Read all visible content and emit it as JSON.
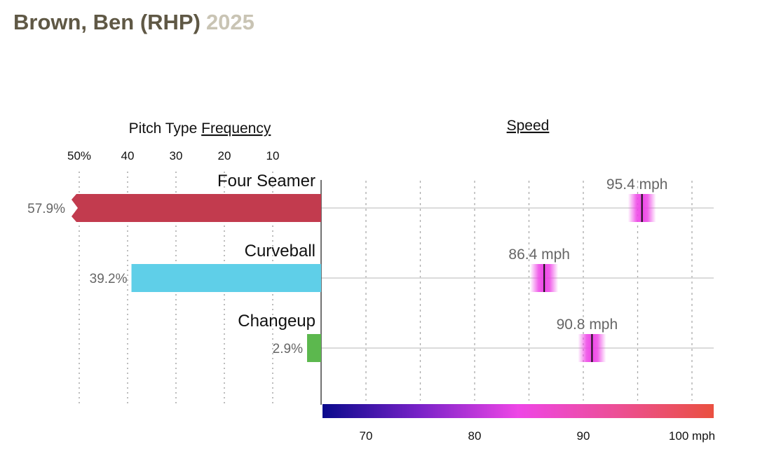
{
  "header": {
    "player": "Brown, Ben (RHP)",
    "season": "2025"
  },
  "chart_data": {
    "type": "bar",
    "frequency_title_prefix": "Pitch Type ",
    "frequency_title_link": "Frequency",
    "speed_title": "Speed",
    "frequency_ticks": [
      {
        "value": 50,
        "label": "50%"
      },
      {
        "value": 40,
        "label": "40"
      },
      {
        "value": 30,
        "label": "30"
      },
      {
        "value": 20,
        "label": "20"
      },
      {
        "value": 10,
        "label": "10"
      }
    ],
    "speed_ticks": [
      {
        "value": 70,
        "label": "70"
      },
      {
        "value": 80,
        "label": "80"
      },
      {
        "value": 90,
        "label": "90"
      },
      {
        "value": 100,
        "label": "100 mph"
      }
    ],
    "speed_range": [
      66,
      102
    ],
    "pitches": [
      {
        "name": "Four Seamer",
        "frequency": 57.9,
        "frequency_label": "57.9%",
        "speed": 95.4,
        "speed_label": "95.4 mph",
        "color": "#c23b4e"
      },
      {
        "name": "Curveball",
        "frequency": 39.2,
        "frequency_label": "39.2%",
        "speed": 86.4,
        "speed_label": "86.4 mph",
        "color": "#5fcfe8"
      },
      {
        "name": "Changeup",
        "frequency": 2.9,
        "frequency_label": "2.9%",
        "speed": 90.8,
        "speed_label": "90.8 mph",
        "color": "#5cb84e"
      }
    ],
    "speed_colorscale": [
      "#0a0a8c",
      "#7a22c8",
      "#ee46e6",
      "#ec4f96",
      "#ea5040"
    ],
    "marker_color": "#ee46e6"
  }
}
